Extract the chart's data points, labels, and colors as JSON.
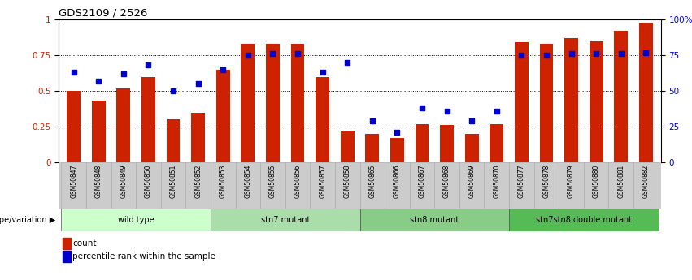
{
  "title": "GDS2109 / 2526",
  "samples": [
    "GSM50847",
    "GSM50848",
    "GSM50849",
    "GSM50850",
    "GSM50851",
    "GSM50852",
    "GSM50853",
    "GSM50854",
    "GSM50855",
    "GSM50856",
    "GSM50857",
    "GSM50858",
    "GSM50865",
    "GSM50866",
    "GSM50867",
    "GSM50868",
    "GSM50869",
    "GSM50870",
    "GSM50877",
    "GSM50878",
    "GSM50879",
    "GSM50880",
    "GSM50881",
    "GSM50882"
  ],
  "bar_heights": [
    0.5,
    0.43,
    0.52,
    0.6,
    0.3,
    0.35,
    0.65,
    0.83,
    0.83,
    0.83,
    0.6,
    0.22,
    0.2,
    0.17,
    0.27,
    0.26,
    0.2,
    0.27,
    0.84,
    0.83,
    0.87,
    0.85,
    0.92,
    0.98
  ],
  "dot_values": [
    0.63,
    0.57,
    0.62,
    0.68,
    0.5,
    0.55,
    0.65,
    0.75,
    0.76,
    0.76,
    0.63,
    0.7,
    0.29,
    0.21,
    0.38,
    0.36,
    0.29,
    0.36,
    0.75,
    0.75,
    0.76,
    0.76,
    0.76,
    0.77
  ],
  "groups": [
    {
      "label": "wild type",
      "start": 0,
      "end": 6,
      "color": "#ccffcc"
    },
    {
      "label": "stn7 mutant",
      "start": 6,
      "end": 12,
      "color": "#aaddaa"
    },
    {
      "label": "stn8 mutant",
      "start": 12,
      "end": 18,
      "color": "#88cc88"
    },
    {
      "label": "stn7stn8 double mutant",
      "start": 18,
      "end": 24,
      "color": "#55bb55"
    }
  ],
  "bar_color": "#cc2200",
  "dot_color": "#0000cc",
  "bar_width": 0.55,
  "ylim": [
    0,
    1.0
  ],
  "legend_count_label": "count",
  "legend_pct_label": "percentile rank within the sample",
  "group_label_prefix": "genotype/variation",
  "sample_bg": "#cccccc",
  "plot_bg": "#ffffff"
}
